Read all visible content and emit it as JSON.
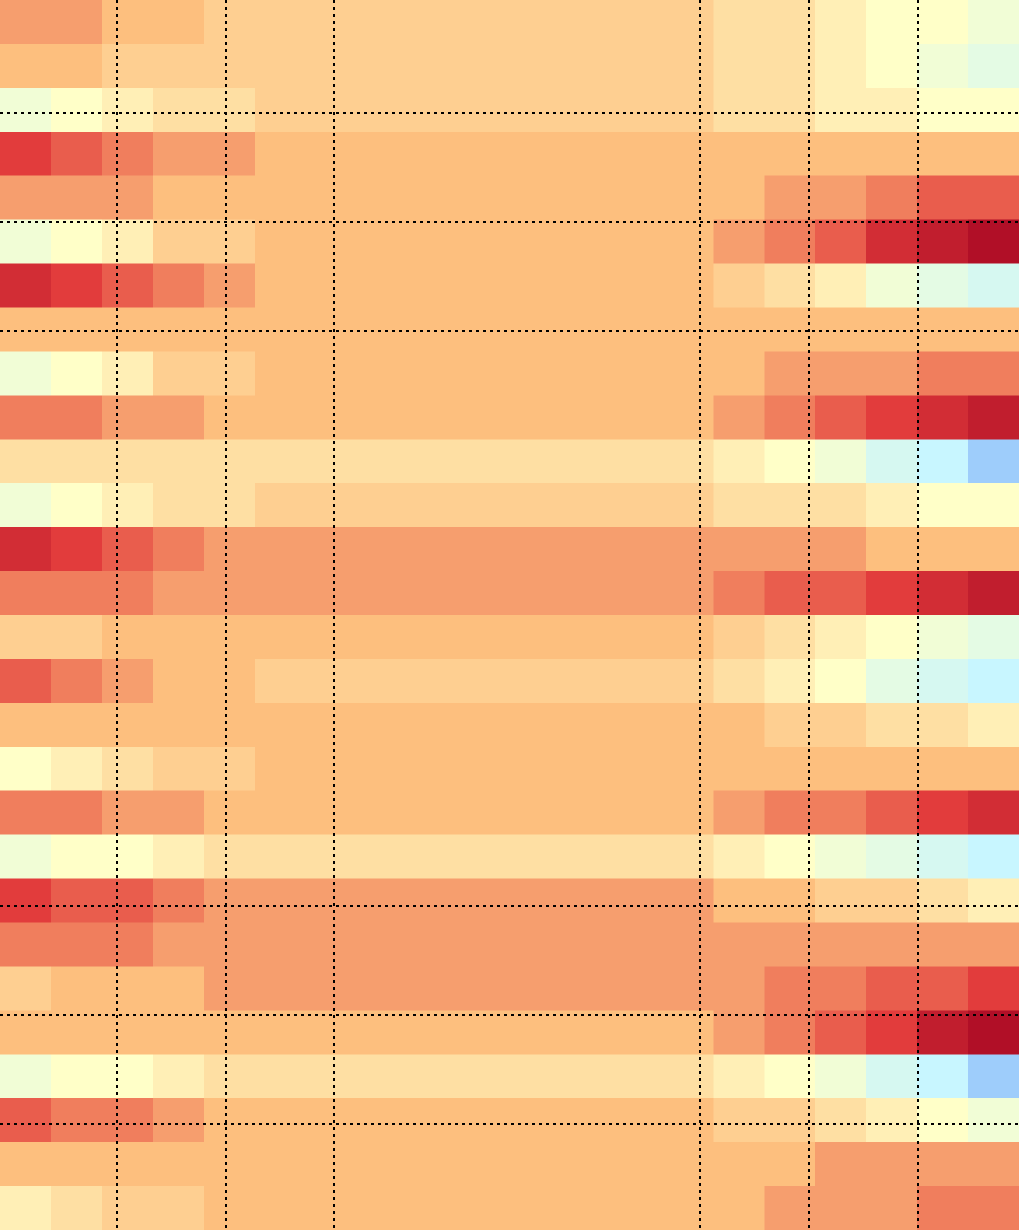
{
  "chart_data": {
    "type": "heatmap",
    "zlim": [
      -1,
      1
    ],
    "colors": [
      "#2050f0",
      "#c8f6ff",
      "#ffffc8",
      "#fdbf7e",
      "#e23c3c",
      "#a00020"
    ],
    "z": [
      [
        0.3,
        0.3,
        0.2,
        0.2,
        0.1,
        0.1,
        0.1,
        0.1,
        0.1,
        0.1,
        0.1,
        0.1,
        0.1,
        0.1,
        0.0,
        0.0,
        -0.1,
        -0.2,
        -0.2,
        -0.3
      ],
      [
        0.2,
        0.2,
        0.1,
        0.1,
        0.1,
        0.1,
        0.1,
        0.1,
        0.1,
        0.1,
        0.1,
        0.1,
        0.1,
        0.1,
        0.0,
        0.0,
        -0.1,
        -0.2,
        -0.3,
        -0.4
      ],
      [
        -0.3,
        -0.2,
        -0.1,
        0.0,
        0.0,
        0.1,
        0.1,
        0.1,
        0.1,
        0.1,
        0.1,
        0.1,
        0.1,
        0.1,
        0.0,
        0.0,
        -0.1,
        -0.1,
        -0.2,
        -0.2
      ],
      [
        0.6,
        0.5,
        0.4,
        0.3,
        0.3,
        0.2,
        0.2,
        0.2,
        0.2,
        0.2,
        0.2,
        0.2,
        0.2,
        0.2,
        0.2,
        0.2,
        0.2,
        0.2,
        0.2,
        0.2
      ],
      [
        0.3,
        0.3,
        0.3,
        0.2,
        0.2,
        0.2,
        0.2,
        0.2,
        0.2,
        0.2,
        0.2,
        0.2,
        0.2,
        0.2,
        0.2,
        0.3,
        0.3,
        0.4,
        0.5,
        0.5
      ],
      [
        -0.3,
        -0.2,
        -0.1,
        0.1,
        0.1,
        0.2,
        0.2,
        0.2,
        0.2,
        0.2,
        0.2,
        0.2,
        0.2,
        0.2,
        0.3,
        0.4,
        0.5,
        0.7,
        0.8,
        0.9
      ],
      [
        0.7,
        0.6,
        0.5,
        0.4,
        0.3,
        0.2,
        0.2,
        0.2,
        0.2,
        0.2,
        0.2,
        0.2,
        0.2,
        0.2,
        0.1,
        0.0,
        -0.1,
        -0.3,
        -0.4,
        -0.5
      ],
      [
        0.2,
        0.2,
        0.2,
        0.2,
        0.2,
        0.2,
        0.2,
        0.2,
        0.2,
        0.2,
        0.2,
        0.2,
        0.2,
        0.2,
        0.2,
        0.2,
        0.2,
        0.2,
        0.2,
        0.2
      ],
      [
        -0.3,
        -0.2,
        -0.1,
        0.1,
        0.1,
        0.2,
        0.2,
        0.2,
        0.2,
        0.2,
        0.2,
        0.2,
        0.2,
        0.2,
        0.2,
        0.3,
        0.3,
        0.3,
        0.4,
        0.4
      ],
      [
        0.4,
        0.4,
        0.3,
        0.3,
        0.2,
        0.2,
        0.2,
        0.2,
        0.2,
        0.2,
        0.2,
        0.2,
        0.2,
        0.2,
        0.3,
        0.4,
        0.5,
        0.6,
        0.7,
        0.8
      ],
      [
        0.0,
        0.0,
        0.0,
        0.0,
        0.0,
        0.0,
        0.0,
        0.0,
        0.0,
        0.0,
        0.0,
        0.0,
        0.0,
        0.0,
        -0.1,
        -0.2,
        -0.3,
        -0.5,
        -0.6,
        -0.7
      ],
      [
        -0.3,
        -0.2,
        -0.1,
        0.0,
        0.0,
        0.1,
        0.1,
        0.1,
        0.1,
        0.1,
        0.1,
        0.1,
        0.1,
        0.1,
        0.0,
        0.0,
        0.0,
        -0.1,
        -0.2,
        -0.2
      ],
      [
        0.7,
        0.6,
        0.5,
        0.4,
        0.3,
        0.3,
        0.3,
        0.3,
        0.3,
        0.3,
        0.3,
        0.3,
        0.3,
        0.3,
        0.3,
        0.3,
        0.3,
        0.2,
        0.2,
        0.2
      ],
      [
        0.4,
        0.4,
        0.4,
        0.3,
        0.3,
        0.3,
        0.3,
        0.3,
        0.3,
        0.3,
        0.3,
        0.3,
        0.3,
        0.3,
        0.4,
        0.5,
        0.5,
        0.6,
        0.7,
        0.8
      ],
      [
        0.1,
        0.1,
        0.2,
        0.2,
        0.2,
        0.2,
        0.2,
        0.2,
        0.2,
        0.2,
        0.2,
        0.2,
        0.2,
        0.2,
        0.1,
        0.0,
        -0.1,
        -0.2,
        -0.3,
        -0.4
      ],
      [
        0.5,
        0.4,
        0.3,
        0.2,
        0.2,
        0.1,
        0.1,
        0.1,
        0.1,
        0.1,
        0.1,
        0.1,
        0.1,
        0.1,
        0.0,
        -0.1,
        -0.2,
        -0.4,
        -0.5,
        -0.6
      ],
      [
        0.2,
        0.2,
        0.2,
        0.2,
        0.2,
        0.2,
        0.2,
        0.2,
        0.2,
        0.2,
        0.2,
        0.2,
        0.2,
        0.2,
        0.2,
        0.1,
        0.1,
        0.0,
        0.0,
        -0.1
      ],
      [
        -0.2,
        -0.1,
        0.0,
        0.1,
        0.1,
        0.2,
        0.2,
        0.2,
        0.2,
        0.2,
        0.2,
        0.2,
        0.2,
        0.2,
        0.2,
        0.2,
        0.2,
        0.2,
        0.2,
        0.2
      ],
      [
        0.4,
        0.4,
        0.3,
        0.3,
        0.2,
        0.2,
        0.2,
        0.2,
        0.2,
        0.2,
        0.2,
        0.2,
        0.2,
        0.2,
        0.3,
        0.4,
        0.4,
        0.5,
        0.6,
        0.7
      ],
      [
        -0.3,
        -0.2,
        -0.2,
        -0.1,
        0.0,
        0.0,
        0.0,
        0.0,
        0.0,
        0.0,
        0.0,
        0.0,
        0.0,
        0.0,
        -0.1,
        -0.2,
        -0.3,
        -0.4,
        -0.5,
        -0.6
      ],
      [
        0.6,
        0.5,
        0.5,
        0.4,
        0.3,
        0.3,
        0.3,
        0.3,
        0.3,
        0.3,
        0.3,
        0.3,
        0.3,
        0.3,
        0.2,
        0.2,
        0.1,
        0.1,
        0.0,
        -0.1
      ],
      [
        0.4,
        0.4,
        0.4,
        0.3,
        0.3,
        0.3,
        0.3,
        0.3,
        0.3,
        0.3,
        0.3,
        0.3,
        0.3,
        0.3,
        0.3,
        0.3,
        0.3,
        0.3,
        0.3,
        0.3
      ],
      [
        0.1,
        0.2,
        0.2,
        0.2,
        0.3,
        0.3,
        0.3,
        0.3,
        0.3,
        0.3,
        0.3,
        0.3,
        0.3,
        0.3,
        0.3,
        0.4,
        0.4,
        0.5,
        0.5,
        0.6
      ],
      [
        0.2,
        0.2,
        0.2,
        0.2,
        0.2,
        0.2,
        0.2,
        0.2,
        0.2,
        0.2,
        0.2,
        0.2,
        0.2,
        0.2,
        0.3,
        0.4,
        0.5,
        0.6,
        0.8,
        0.9
      ],
      [
        -0.3,
        -0.2,
        -0.2,
        -0.1,
        0.0,
        0.0,
        0.0,
        0.0,
        0.0,
        0.0,
        0.0,
        0.0,
        0.0,
        0.0,
        -0.1,
        -0.2,
        -0.3,
        -0.5,
        -0.6,
        -0.7
      ],
      [
        0.5,
        0.4,
        0.4,
        0.3,
        0.2,
        0.2,
        0.2,
        0.2,
        0.2,
        0.2,
        0.2,
        0.2,
        0.2,
        0.2,
        0.1,
        0.1,
        0.0,
        -0.1,
        -0.2,
        -0.3
      ],
      [
        0.2,
        0.2,
        0.2,
        0.2,
        0.2,
        0.2,
        0.2,
        0.2,
        0.2,
        0.2,
        0.2,
        0.2,
        0.2,
        0.2,
        0.2,
        0.2,
        0.3,
        0.3,
        0.3,
        0.3
      ],
      [
        -0.1,
        0.0,
        0.1,
        0.1,
        0.2,
        0.2,
        0.2,
        0.2,
        0.2,
        0.2,
        0.2,
        0.2,
        0.2,
        0.2,
        0.2,
        0.3,
        0.3,
        0.3,
        0.4,
        0.4
      ]
    ]
  }
}
